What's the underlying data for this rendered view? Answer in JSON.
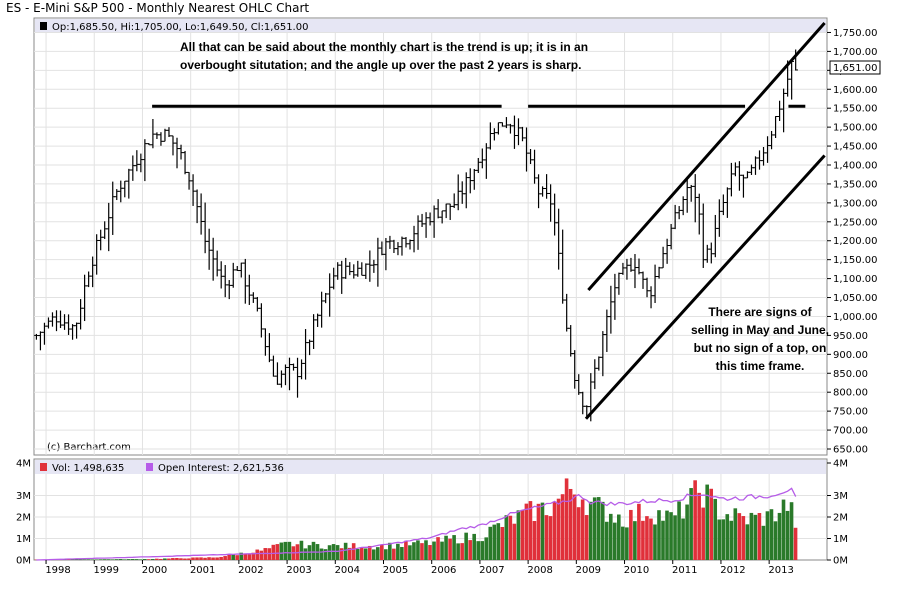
{
  "chart_data": [
    {
      "type": "ohlc",
      "title": "ES - E-Mini S&P 500 - Monthly Nearest OHLC Chart",
      "legend": "Op:1,685.50, Hi:1,705.00, Lo:1,649.50, Cl:1,651.00",
      "last_price_label": "1,651.00",
      "credit": "(c) Barchart.com",
      "ylim": [
        650,
        1775
      ],
      "y_ticks": [
        "650.00",
        "700.00",
        "750.00",
        "800.00",
        "850.00",
        "900.00",
        "950.00",
        "1,000.00",
        "1,050.00",
        "1,100.00",
        "1,150.00",
        "1,200.00",
        "1,250.00",
        "1,300.00",
        "1,350.00",
        "1,400.00",
        "1,450.00",
        "1,500.00",
        "1,550.00",
        "1,600.00",
        "1,650.00",
        "1,700.00",
        "1,750.00"
      ],
      "x_ticks": [
        "1998",
        "1999",
        "2000",
        "2001",
        "2002",
        "2003",
        "2004",
        "2005",
        "2006",
        "2007",
        "2008",
        "2009",
        "2010",
        "2011",
        "2012",
        "2013"
      ],
      "xlim": [
        1997.75,
        2014.2
      ],
      "anchors": [
        {
          "t": 1997.8,
          "c": 950
        },
        {
          "t": 1998.2,
          "c": 1000
        },
        {
          "t": 1998.6,
          "c": 970
        },
        {
          "t": 1998.9,
          "c": 1130
        },
        {
          "t": 1999.5,
          "c": 1340
        },
        {
          "t": 1999.9,
          "c": 1420
        },
        {
          "t": 2000.2,
          "c": 1480
        },
        {
          "t": 2000.5,
          "c": 1480
        },
        {
          "t": 2000.75,
          "c": 1440
        },
        {
          "t": 2001.0,
          "c": 1360
        },
        {
          "t": 2001.3,
          "c": 1200
        },
        {
          "t": 2001.7,
          "c": 1080
        },
        {
          "t": 2002.0,
          "c": 1140
        },
        {
          "t": 2002.4,
          "c": 1000
        },
        {
          "t": 2002.75,
          "c": 830
        },
        {
          "t": 2003.0,
          "c": 860
        },
        {
          "t": 2003.2,
          "c": 850
        },
        {
          "t": 2003.6,
          "c": 990
        },
        {
          "t": 2004.0,
          "c": 1120
        },
        {
          "t": 2004.4,
          "c": 1120
        },
        {
          "t": 2004.75,
          "c": 1140
        },
        {
          "t": 2005.0,
          "c": 1190
        },
        {
          "t": 2005.5,
          "c": 1210
        },
        {
          "t": 2006.0,
          "c": 1270
        },
        {
          "t": 2006.5,
          "c": 1300
        },
        {
          "t": 2007.0,
          "c": 1420
        },
        {
          "t": 2007.3,
          "c": 1500
        },
        {
          "t": 2007.6,
          "c": 1520
        },
        {
          "t": 2007.9,
          "c": 1460
        },
        {
          "t": 2008.2,
          "c": 1330
        },
        {
          "t": 2008.5,
          "c": 1300
        },
        {
          "t": 2008.8,
          "c": 970
        },
        {
          "t": 2009.0,
          "c": 820
        },
        {
          "t": 2009.2,
          "c": 760
        },
        {
          "t": 2009.5,
          "c": 920
        },
        {
          "t": 2009.8,
          "c": 1080
        },
        {
          "t": 2010.2,
          "c": 1150
        },
        {
          "t": 2010.5,
          "c": 1050
        },
        {
          "t": 2010.8,
          "c": 1170
        },
        {
          "t": 2011.3,
          "c": 1340
        },
        {
          "t": 2011.5,
          "c": 1320
        },
        {
          "t": 2011.65,
          "c": 1150
        },
        {
          "t": 2011.8,
          "c": 1180
        },
        {
          "t": 2012.0,
          "c": 1280
        },
        {
          "t": 2012.3,
          "c": 1390
        },
        {
          "t": 2012.5,
          "c": 1350
        },
        {
          "t": 2012.8,
          "c": 1420
        },
        {
          "t": 2013.0,
          "c": 1470
        },
        {
          "t": 2013.3,
          "c": 1590
        },
        {
          "t": 2013.5,
          "c": 1680
        },
        {
          "t": 2013.6,
          "c": 1651
        }
      ],
      "trendlines": [
        {
          "name": "resistance-2000-2007",
          "t1": 2000.2,
          "p1": 1555,
          "t2": 2007.45,
          "p2": 1555
        },
        {
          "name": "resistance-2007-2013",
          "t1": 2008.0,
          "p1": 1555,
          "t2": 2012.5,
          "p2": 1555
        },
        {
          "name": "resistance-2013-right",
          "t1": 2013.4,
          "p1": 1555,
          "t2": 2013.75,
          "p2": 1555
        },
        {
          "name": "upper-channel",
          "t1": 2009.25,
          "p1": 1070,
          "t2": 2014.15,
          "p2": 1775
        },
        {
          "name": "lower-channel",
          "t1": 2009.2,
          "p1": 730,
          "t2": 2014.15,
          "p2": 1425
        }
      ],
      "annotations": [
        [
          "All that can be said about the monthly chart is the trend is up; it is in an",
          "overbought situtation; and the angle up over the past 2 years is sharp."
        ],
        [
          "There are signs of",
          "selling in May and June,",
          "but no sign of a top, on",
          "this time frame."
        ]
      ]
    },
    {
      "type": "bar",
      "title": "Volume / Open Interest",
      "vol_legend": "Vol: 1,498,635",
      "oi_legend": "Open Interest: 2,621,536",
      "ylim": [
        0,
        4000000
      ],
      "y_ticks": [
        "0M",
        "1M",
        "2M",
        "3M",
        "4M"
      ],
      "colors": {
        "up": "#2a7a2a",
        "down": "#e0303a",
        "oi": "#b65ce8"
      },
      "volume_anchors": [
        {
          "t": 1997.8,
          "v": 20000
        },
        {
          "t": 2000.0,
          "v": 40000
        },
        {
          "t": 2001.5,
          "v": 120000
        },
        {
          "t": 2002.5,
          "v": 450000
        },
        {
          "t": 2003.0,
          "v": 750000
        },
        {
          "t": 2004.0,
          "v": 650000
        },
        {
          "t": 2005.0,
          "v": 650000
        },
        {
          "t": 2006.0,
          "v": 800000
        },
        {
          "t": 2006.5,
          "v": 1000000
        },
        {
          "t": 2007.0,
          "v": 1100000
        },
        {
          "t": 2007.5,
          "v": 1700000
        },
        {
          "t": 2008.0,
          "v": 2200000
        },
        {
          "t": 2008.5,
          "v": 2500000
        },
        {
          "t": 2008.9,
          "v": 3400000
        },
        {
          "t": 2009.3,
          "v": 2600000
        },
        {
          "t": 2010.0,
          "v": 1900000
        },
        {
          "t": 2010.5,
          "v": 2300000
        },
        {
          "t": 2011.0,
          "v": 1900000
        },
        {
          "t": 2011.6,
          "v": 3300000
        },
        {
          "t": 2012.0,
          "v": 2200000
        },
        {
          "t": 2012.5,
          "v": 1900000
        },
        {
          "t": 2013.0,
          "v": 2000000
        },
        {
          "t": 2013.4,
          "v": 2600000
        },
        {
          "t": 2013.6,
          "v": 1500000
        }
      ],
      "oi_anchors": [
        {
          "t": 1997.8,
          "v": 0
        },
        {
          "t": 2004.0,
          "v": 400000
        },
        {
          "t": 2005.0,
          "v": 700000
        },
        {
          "t": 2006.0,
          "v": 1050000
        },
        {
          "t": 2006.6,
          "v": 1450000
        },
        {
          "t": 2007.0,
          "v": 1600000
        },
        {
          "t": 2007.6,
          "v": 2100000
        },
        {
          "t": 2008.0,
          "v": 2350000
        },
        {
          "t": 2008.7,
          "v": 2700000
        },
        {
          "t": 2009.1,
          "v": 3000000
        },
        {
          "t": 2009.3,
          "v": 2700000
        },
        {
          "t": 2009.8,
          "v": 2600000
        },
        {
          "t": 2010.5,
          "v": 2750000
        },
        {
          "t": 2011.0,
          "v": 2800000
        },
        {
          "t": 2011.6,
          "v": 3100000
        },
        {
          "t": 2012.0,
          "v": 2850000
        },
        {
          "t": 2012.5,
          "v": 2900000
        },
        {
          "t": 2013.0,
          "v": 3000000
        },
        {
          "t": 2013.45,
          "v": 3300000
        },
        {
          "t": 2013.6,
          "v": 2620000
        }
      ]
    }
  ]
}
